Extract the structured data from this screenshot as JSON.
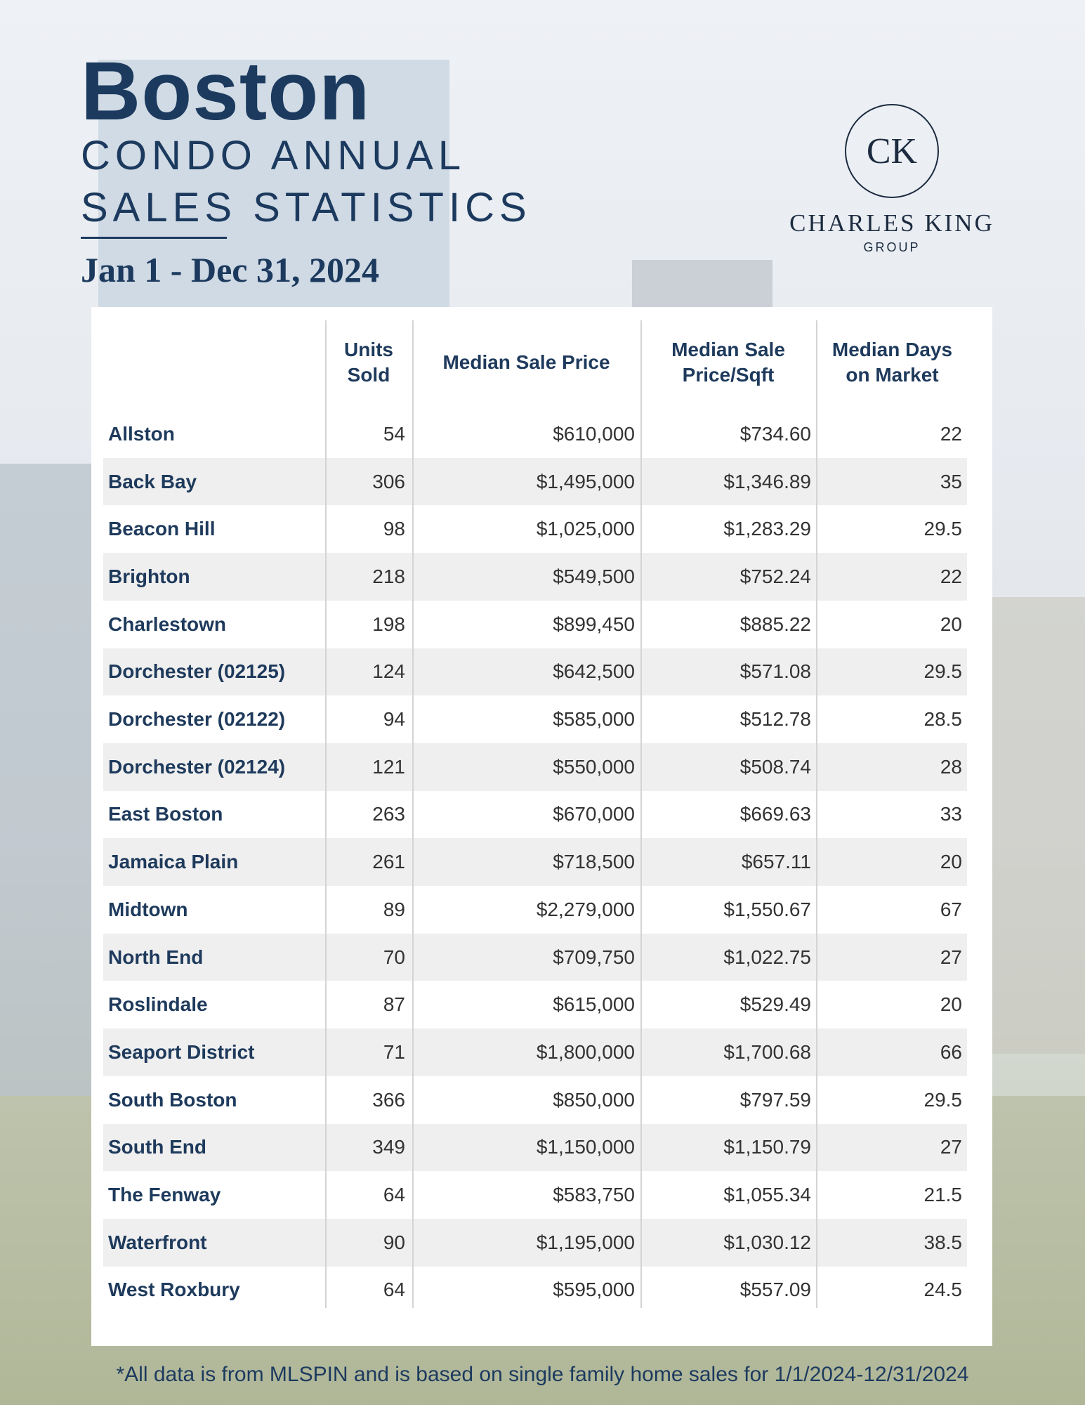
{
  "header": {
    "city": "Boston",
    "subtitle_line1": "CONDO ANNUAL",
    "subtitle_line2": "SALES STATISTICS",
    "date_range": "Jan 1 - Dec 31, 2024"
  },
  "logo": {
    "monogram": "CK",
    "name": "CHARLES KING",
    "group": "GROUP"
  },
  "table": {
    "columns": [
      "",
      "Units Sold",
      "Median Sale Price",
      "Median Sale Price/Sqft",
      "Median Days on Market"
    ],
    "column_lines": {
      "units": [
        "Units",
        "Sold"
      ],
      "price": [
        "Median Sale Price"
      ],
      "sqft": [
        "Median Sale",
        "Price/Sqft"
      ],
      "days": [
        "Median Days",
        "on Market"
      ]
    },
    "rows": [
      [
        "Allston",
        "54",
        "$610,000",
        "$734.60",
        "22"
      ],
      [
        "Back Bay",
        "306",
        "$1,495,000",
        "$1,346.89",
        "35"
      ],
      [
        "Beacon Hill",
        "98",
        "$1,025,000",
        "$1,283.29",
        "29.5"
      ],
      [
        "Brighton",
        "218",
        "$549,500",
        "$752.24",
        "22"
      ],
      [
        "Charlestown",
        "198",
        "$899,450",
        "$885.22",
        "20"
      ],
      [
        "Dorchester (02125)",
        "124",
        "$642,500",
        "$571.08",
        "29.5"
      ],
      [
        "Dorchester (02122)",
        "94",
        "$585,000",
        "$512.78",
        "28.5"
      ],
      [
        "Dorchester (02124)",
        "121",
        "$550,000",
        "$508.74",
        "28"
      ],
      [
        "East Boston",
        "263",
        "$670,000",
        "$669.63",
        "33"
      ],
      [
        "Jamaica Plain",
        "261",
        "$718,500",
        "$657.11",
        "20"
      ],
      [
        "Midtown",
        "89",
        "$2,279,000",
        "$1,550.67",
        "67"
      ],
      [
        "North End",
        "70",
        "$709,750",
        "$1,022.75",
        "27"
      ],
      [
        "Roslindale",
        "87",
        "$615,000",
        "$529.49",
        "20"
      ],
      [
        "Seaport District",
        "71",
        "$1,800,000",
        "$1,700.68",
        "66"
      ],
      [
        "South Boston",
        "366",
        "$850,000",
        "$797.59",
        "29.5"
      ],
      [
        "South End",
        "349",
        "$1,150,000",
        "$1,150.79",
        "27"
      ],
      [
        "The Fenway",
        "64",
        "$583,750",
        "$1,055.34",
        "21.5"
      ],
      [
        "Waterfront",
        "90",
        "$1,195,000",
        "$1,030.12",
        "38.5"
      ],
      [
        "West Roxbury",
        "64",
        "$595,000",
        "$557.09",
        "24.5"
      ]
    ]
  },
  "footer": "*All data is from MLSPIN and is based on single family home sales for 1/1/2024-12/31/2024"
}
